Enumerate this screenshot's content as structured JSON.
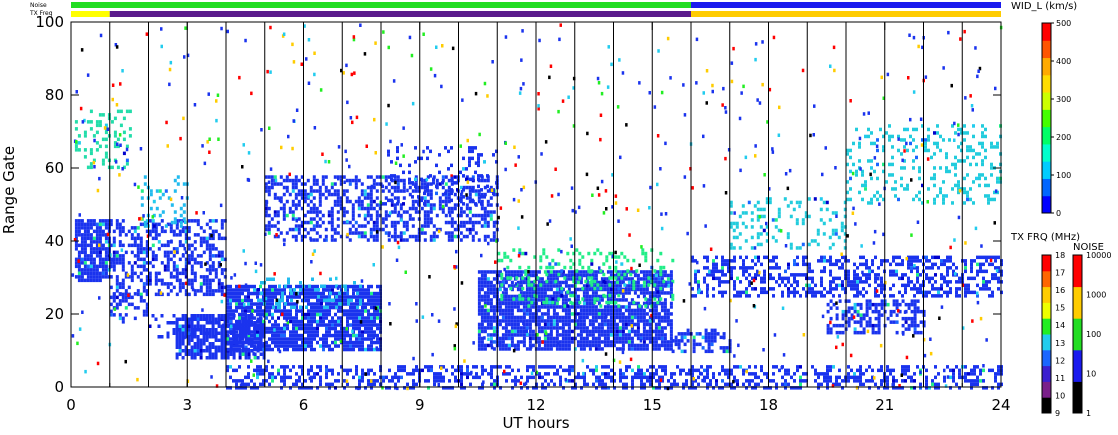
{
  "chart_data": {
    "type": "heatmap",
    "xlabel": "UT hours",
    "ylabel": "Range Gate",
    "xlim": [
      0,
      24
    ],
    "ylim": [
      0,
      100
    ],
    "xticks": [
      "0",
      "3",
      "6",
      "9",
      "12",
      "15",
      "18",
      "21",
      "24"
    ],
    "yticks": [
      "0",
      "20",
      "40",
      "60",
      "80",
      "100"
    ],
    "strip_labels": {
      "noise": "Noise",
      "txfreq": "TX Freq"
    },
    "noise_strip_segments": [
      {
        "from": 0,
        "to": 16.0,
        "color": "#22dd22"
      },
      {
        "from": 16.0,
        "to": 24,
        "color": "#1a1aee"
      }
    ],
    "txfreq_strip_segments": [
      {
        "from": 0,
        "to": 1.0,
        "color": "#ffff00"
      },
      {
        "from": 1.0,
        "to": 16.0,
        "color": "#5a1a8c"
      },
      {
        "from": 16.0,
        "to": 24,
        "color": "#ffcc00"
      }
    ],
    "vertical_lines_ut": [
      1,
      2,
      3,
      4,
      5,
      6,
      7,
      8,
      9,
      10,
      11,
      12,
      13,
      14,
      15,
      16,
      17,
      18,
      19,
      20,
      21,
      22,
      23
    ],
    "echo_regions": [
      {
        "t0": 0.1,
        "t1": 1.0,
        "g0": 29,
        "g1": 46,
        "speed": "dense",
        "color": "#1a33ee"
      },
      {
        "t0": 1.0,
        "t1": 4.0,
        "g0": 25,
        "g1": 46,
        "speed": "medium",
        "color": "#1a33ee"
      },
      {
        "t0": 1.0,
        "t1": 2.0,
        "g0": 18,
        "g1": 26,
        "speed": "medium",
        "color": "#1a33ee"
      },
      {
        "t0": 2.0,
        "t1": 4.0,
        "g0": 14,
        "g1": 20,
        "speed": "sparse",
        "color": "#1a33ee"
      },
      {
        "t0": 2.7,
        "t1": 5.0,
        "g0": 8,
        "g1": 20,
        "speed": "dense",
        "color": "#1a33ee"
      },
      {
        "t0": 4.0,
        "t1": 8.0,
        "g0": 10,
        "g1": 28,
        "speed": "dense",
        "color": "#1a33ee"
      },
      {
        "t0": 4.8,
        "t1": 7.5,
        "g0": 22,
        "g1": 30,
        "speed": "sparse",
        "color": "#22bbee"
      },
      {
        "t0": 5.0,
        "t1": 11.0,
        "g0": 40,
        "g1": 58,
        "speed": "medium",
        "color": "#1a33ee"
      },
      {
        "t0": 8.0,
        "t1": 11.0,
        "g0": 50,
        "g1": 66,
        "speed": "sparse",
        "color": "#1a33ee"
      },
      {
        "t0": 10.5,
        "t1": 15.5,
        "g0": 10,
        "g1": 32,
        "speed": "dense",
        "color": "#1a33ee"
      },
      {
        "t0": 11.0,
        "t1": 15.5,
        "g0": 22,
        "g1": 38,
        "speed": "sparse",
        "color": "#22ee88"
      },
      {
        "t0": 15.5,
        "t1": 17.0,
        "g0": 10,
        "g1": 16,
        "speed": "medium",
        "color": "#1a33ee"
      },
      {
        "t0": 16.0,
        "t1": 24.0,
        "g0": 25,
        "g1": 36,
        "speed": "medium",
        "color": "#1a33ee"
      },
      {
        "t0": 17.0,
        "t1": 20.0,
        "g0": 38,
        "g1": 52,
        "speed": "sparse",
        "color": "#22ccdd"
      },
      {
        "t0": 20.0,
        "t1": 24.0,
        "g0": 50,
        "g1": 72,
        "speed": "sparse",
        "color": "#22ccdd"
      },
      {
        "t0": 19.5,
        "t1": 22.0,
        "g0": 15,
        "g1": 24,
        "speed": "medium",
        "color": "#1a33ee"
      },
      {
        "t0": 0.1,
        "t1": 1.5,
        "g0": 60,
        "g1": 76,
        "speed": "sparse",
        "color": "#22ddaa"
      },
      {
        "t0": 1.8,
        "t1": 3.0,
        "g0": 44,
        "g1": 58,
        "speed": "sparse",
        "color": "#22bbee"
      },
      {
        "t0": 4.0,
        "t1": 24.0,
        "g0": 0,
        "g1": 6,
        "speed": "medium",
        "color": "#1a33ee"
      }
    ]
  },
  "colorbar_velocity": {
    "title": "WID_L (km/s)",
    "ticks": [
      "0",
      "100",
      "200",
      "300",
      "400",
      "500"
    ],
    "colors": [
      "#0000ff",
      "#0066ff",
      "#00ccff",
      "#00ffcc",
      "#00ff66",
      "#44ff00",
      "#ccff00",
      "#ffdd00",
      "#ffaa00",
      "#ff5500",
      "#ff0000"
    ]
  },
  "colorbar_txfreq": {
    "title": "TX FRQ (MHz)",
    "ticks": [
      "9",
      "10",
      "11",
      "12",
      "13",
      "14",
      "15",
      "16",
      "17",
      "18"
    ],
    "colors": [
      "#000000",
      "#7a1f8a",
      "#3b1fd0",
      "#1a66ff",
      "#22ccee",
      "#22ee22",
      "#eeff00",
      "#ffcc00",
      "#ff6600",
      "#ff0000"
    ]
  },
  "colorbar_noise": {
    "title": "NOISE",
    "ticks": [
      "1",
      "10",
      "100",
      "1000",
      "10000"
    ],
    "colors": [
      "#000000",
      "#1a1aee",
      "#22dd22",
      "#ffcc00",
      "#ff0000"
    ]
  }
}
